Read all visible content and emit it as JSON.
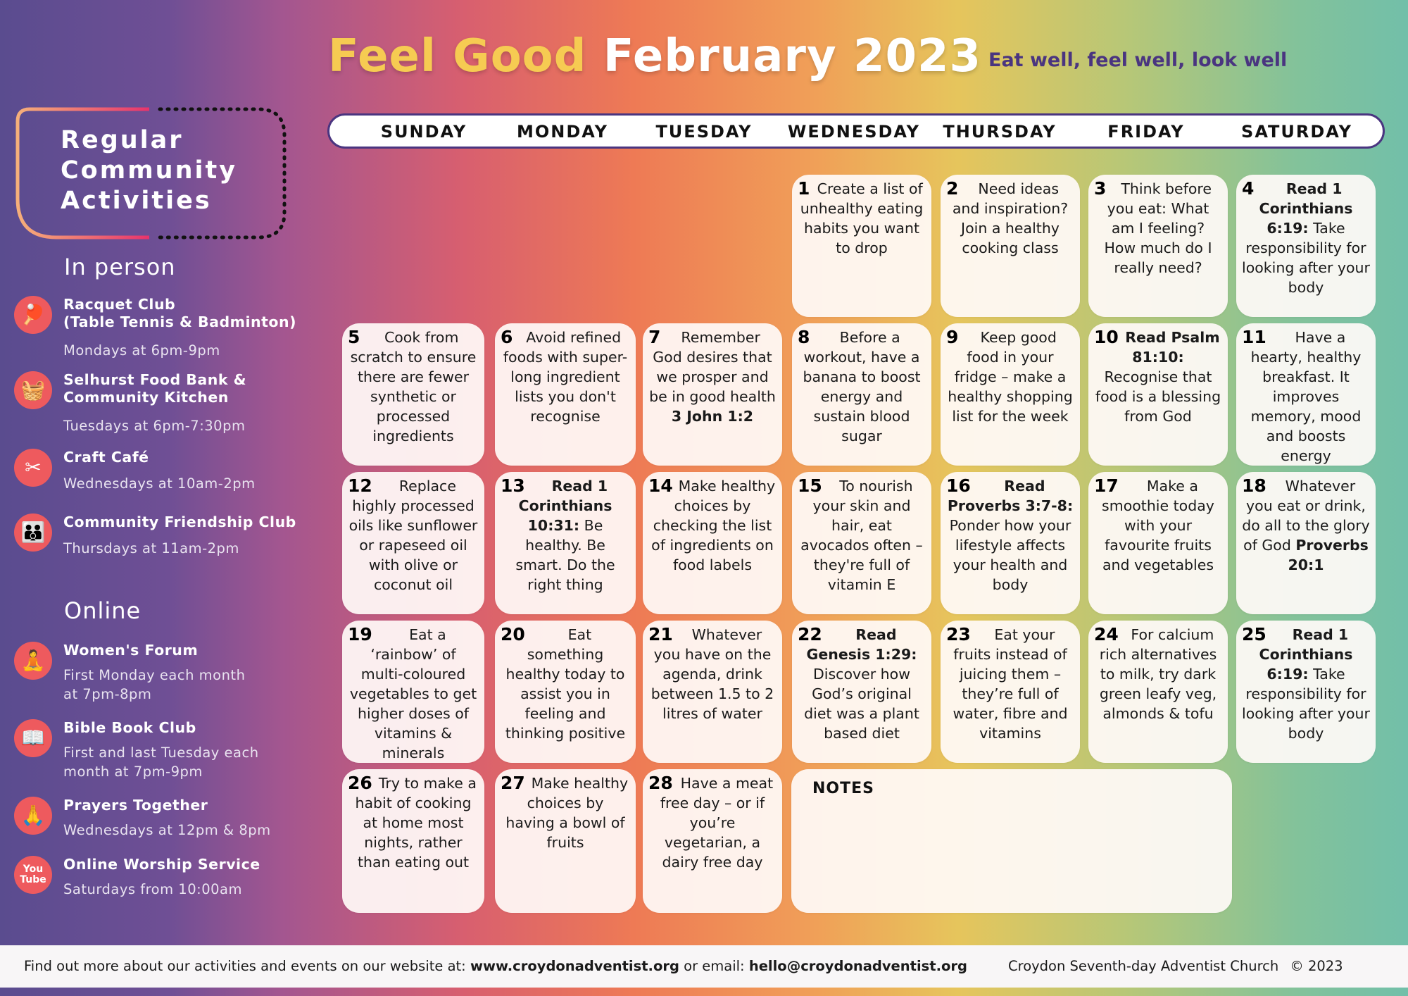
{
  "header": {
    "title_part1": "Feel Good",
    "title_part2": "February 2023",
    "tagline": "Eat well, feel well, look well"
  },
  "days": [
    "SUNDAY",
    "MONDAY",
    "TUESDAY",
    "WEDNESDAY",
    "THURSDAY",
    "FRIDAY",
    "SATURDAY"
  ],
  "calendar": {
    "notes_label": "NOTES",
    "cells": [
      {
        "num": "1",
        "html": "Create a list of unhealthy eating habits you want to drop"
      },
      {
        "num": "2",
        "html": "Need ideas and inspiration? Join a healthy cooking class"
      },
      {
        "num": "3",
        "html": "Think before you eat: What am I feeling? How much do I really need?"
      },
      {
        "num": "4",
        "html": "<b>Read 1 Corinthians 6:19:</b> Take responsibility for looking after your body"
      },
      {
        "num": "5",
        "html": "Cook from scratch to ensure there are fewer synthetic or processed ingredients"
      },
      {
        "num": "6",
        "html": "Avoid refined foods with super-long ingredient lists you don't recognise"
      },
      {
        "num": "7",
        "html": "Remember God desires that we prosper and be in good health <b>3 John 1:2</b>"
      },
      {
        "num": "8",
        "html": "Before a workout, have a banana to boost energy and sustain blood sugar"
      },
      {
        "num": "9",
        "html": "Keep good food in your fridge – make a healthy shopping list for the week"
      },
      {
        "num": "10",
        "html": "<b>Read Psalm 81:10:</b> Recognise that food is a blessing from God"
      },
      {
        "num": "11",
        "html": "Have a hearty, healthy breakfast. It improves memory, mood and boosts energy"
      },
      {
        "num": "12",
        "html": "Replace highly processed oils like sunflower or rapeseed oil with olive or coconut oil"
      },
      {
        "num": "13",
        "html": "<b>Read 1 Corinthians 10:31:</b> Be healthy. Be smart. Do the right thing"
      },
      {
        "num": "14",
        "html": "Make healthy choices by checking the list of ingredients on food labels"
      },
      {
        "num": "15",
        "html": "To nourish your skin and hair, eat avocados often – they're full of vitamin E"
      },
      {
        "num": "16",
        "html": "<b>Read Proverbs 3:7-8:</b> Ponder how your lifestyle affects your health and body"
      },
      {
        "num": "17",
        "html": "Make a smoothie today with your favourite fruits and vegetables"
      },
      {
        "num": "18",
        "html": "Whatever you eat or drink, do all to the glory of God <b>Proverbs 20:1</b>"
      },
      {
        "num": "19",
        "html": "Eat a ‘rainbow’ of multi-coloured vegetables to get higher doses of vitamins &amp; minerals"
      },
      {
        "num": "20",
        "html": "Eat something healthy today to assist you in feeling and thinking positive"
      },
      {
        "num": "21",
        "html": "Whatever you have on the agenda, drink between 1.5 to 2 litres of water"
      },
      {
        "num": "22",
        "html": "<b>Read Genesis 1:29:</b> Discover how God’s original diet was a plant based diet"
      },
      {
        "num": "23",
        "html": "Eat your fruits instead of juicing them – they’re full of water, fibre and vitamins"
      },
      {
        "num": "24",
        "html": "For calcium rich alternatives to milk, try dark green leafy veg, almonds &amp; tofu"
      },
      {
        "num": "25",
        "html": "<b>Read 1 Corinthians 6:19:</b> Take responsibility for looking after your body"
      },
      {
        "num": "26",
        "html": "Try to make a habit of cooking at home most nights, rather than eating out"
      },
      {
        "num": "27",
        "html": "Make healthy choices by having a bowl of fruits"
      },
      {
        "num": "28",
        "html": "Have a meat free day – or if you’re vegetarian, a dairy free day"
      }
    ]
  },
  "sidebar": {
    "title": "Regular\nCommunity\nActivities",
    "in_person_heading": "In person",
    "online_heading": "Online",
    "activities": [
      {
        "icon": "table-tennis-icon",
        "glyph": "🏓",
        "name": "Racquet Club\n(Table Tennis & Badminton)",
        "time": "Mondays at 6pm-9pm"
      },
      {
        "icon": "food-basket-icon",
        "glyph": "🧺",
        "name": "Selhurst Food Bank &\nCommunity Kitchen",
        "time": "Tuesdays at 6pm-7:30pm"
      },
      {
        "icon": "scissors-icon",
        "glyph": "✂",
        "name": "Craft Café",
        "time": "Wednesdays at 10am-2pm"
      },
      {
        "icon": "friendship-icon",
        "glyph": "👪",
        "name": "Community Friendship Club",
        "time": "Thursdays at 11am-2pm"
      },
      {
        "icon": "meditation-icon",
        "glyph": "🧘",
        "name": "Women's Forum",
        "time": "First Monday each month\nat 7pm-8pm"
      },
      {
        "icon": "bible-icon",
        "glyph": "📖",
        "name": "Bible Book Club",
        "time": "First and last Tuesday each\nmonth at 7pm-9pm"
      },
      {
        "icon": "praying-hands-icon",
        "glyph": "🙏",
        "name": "Prayers Together",
        "time": "Wednesdays at 12pm & 8pm"
      },
      {
        "icon": "youtube-icon",
        "glyph": "You\nTube",
        "name": "Online Worship Service",
        "time": "Saturdays from 10:00am"
      }
    ]
  },
  "footer": {
    "text_before_site": "Find out more about our activities and events on our website at: ",
    "website": "www.croydonadventist.org",
    "text_before_email": " or email: ",
    "email": "hello@croydonadventist.org",
    "church": "Croydon Seventh-day Adventist Church",
    "copyright": "© 2023"
  },
  "colors": {
    "title_gold": "#f6cb52",
    "tagline_purple": "#4a3580",
    "icon_red": "#ee5a5e",
    "cell_bg": "#fffaf8"
  }
}
